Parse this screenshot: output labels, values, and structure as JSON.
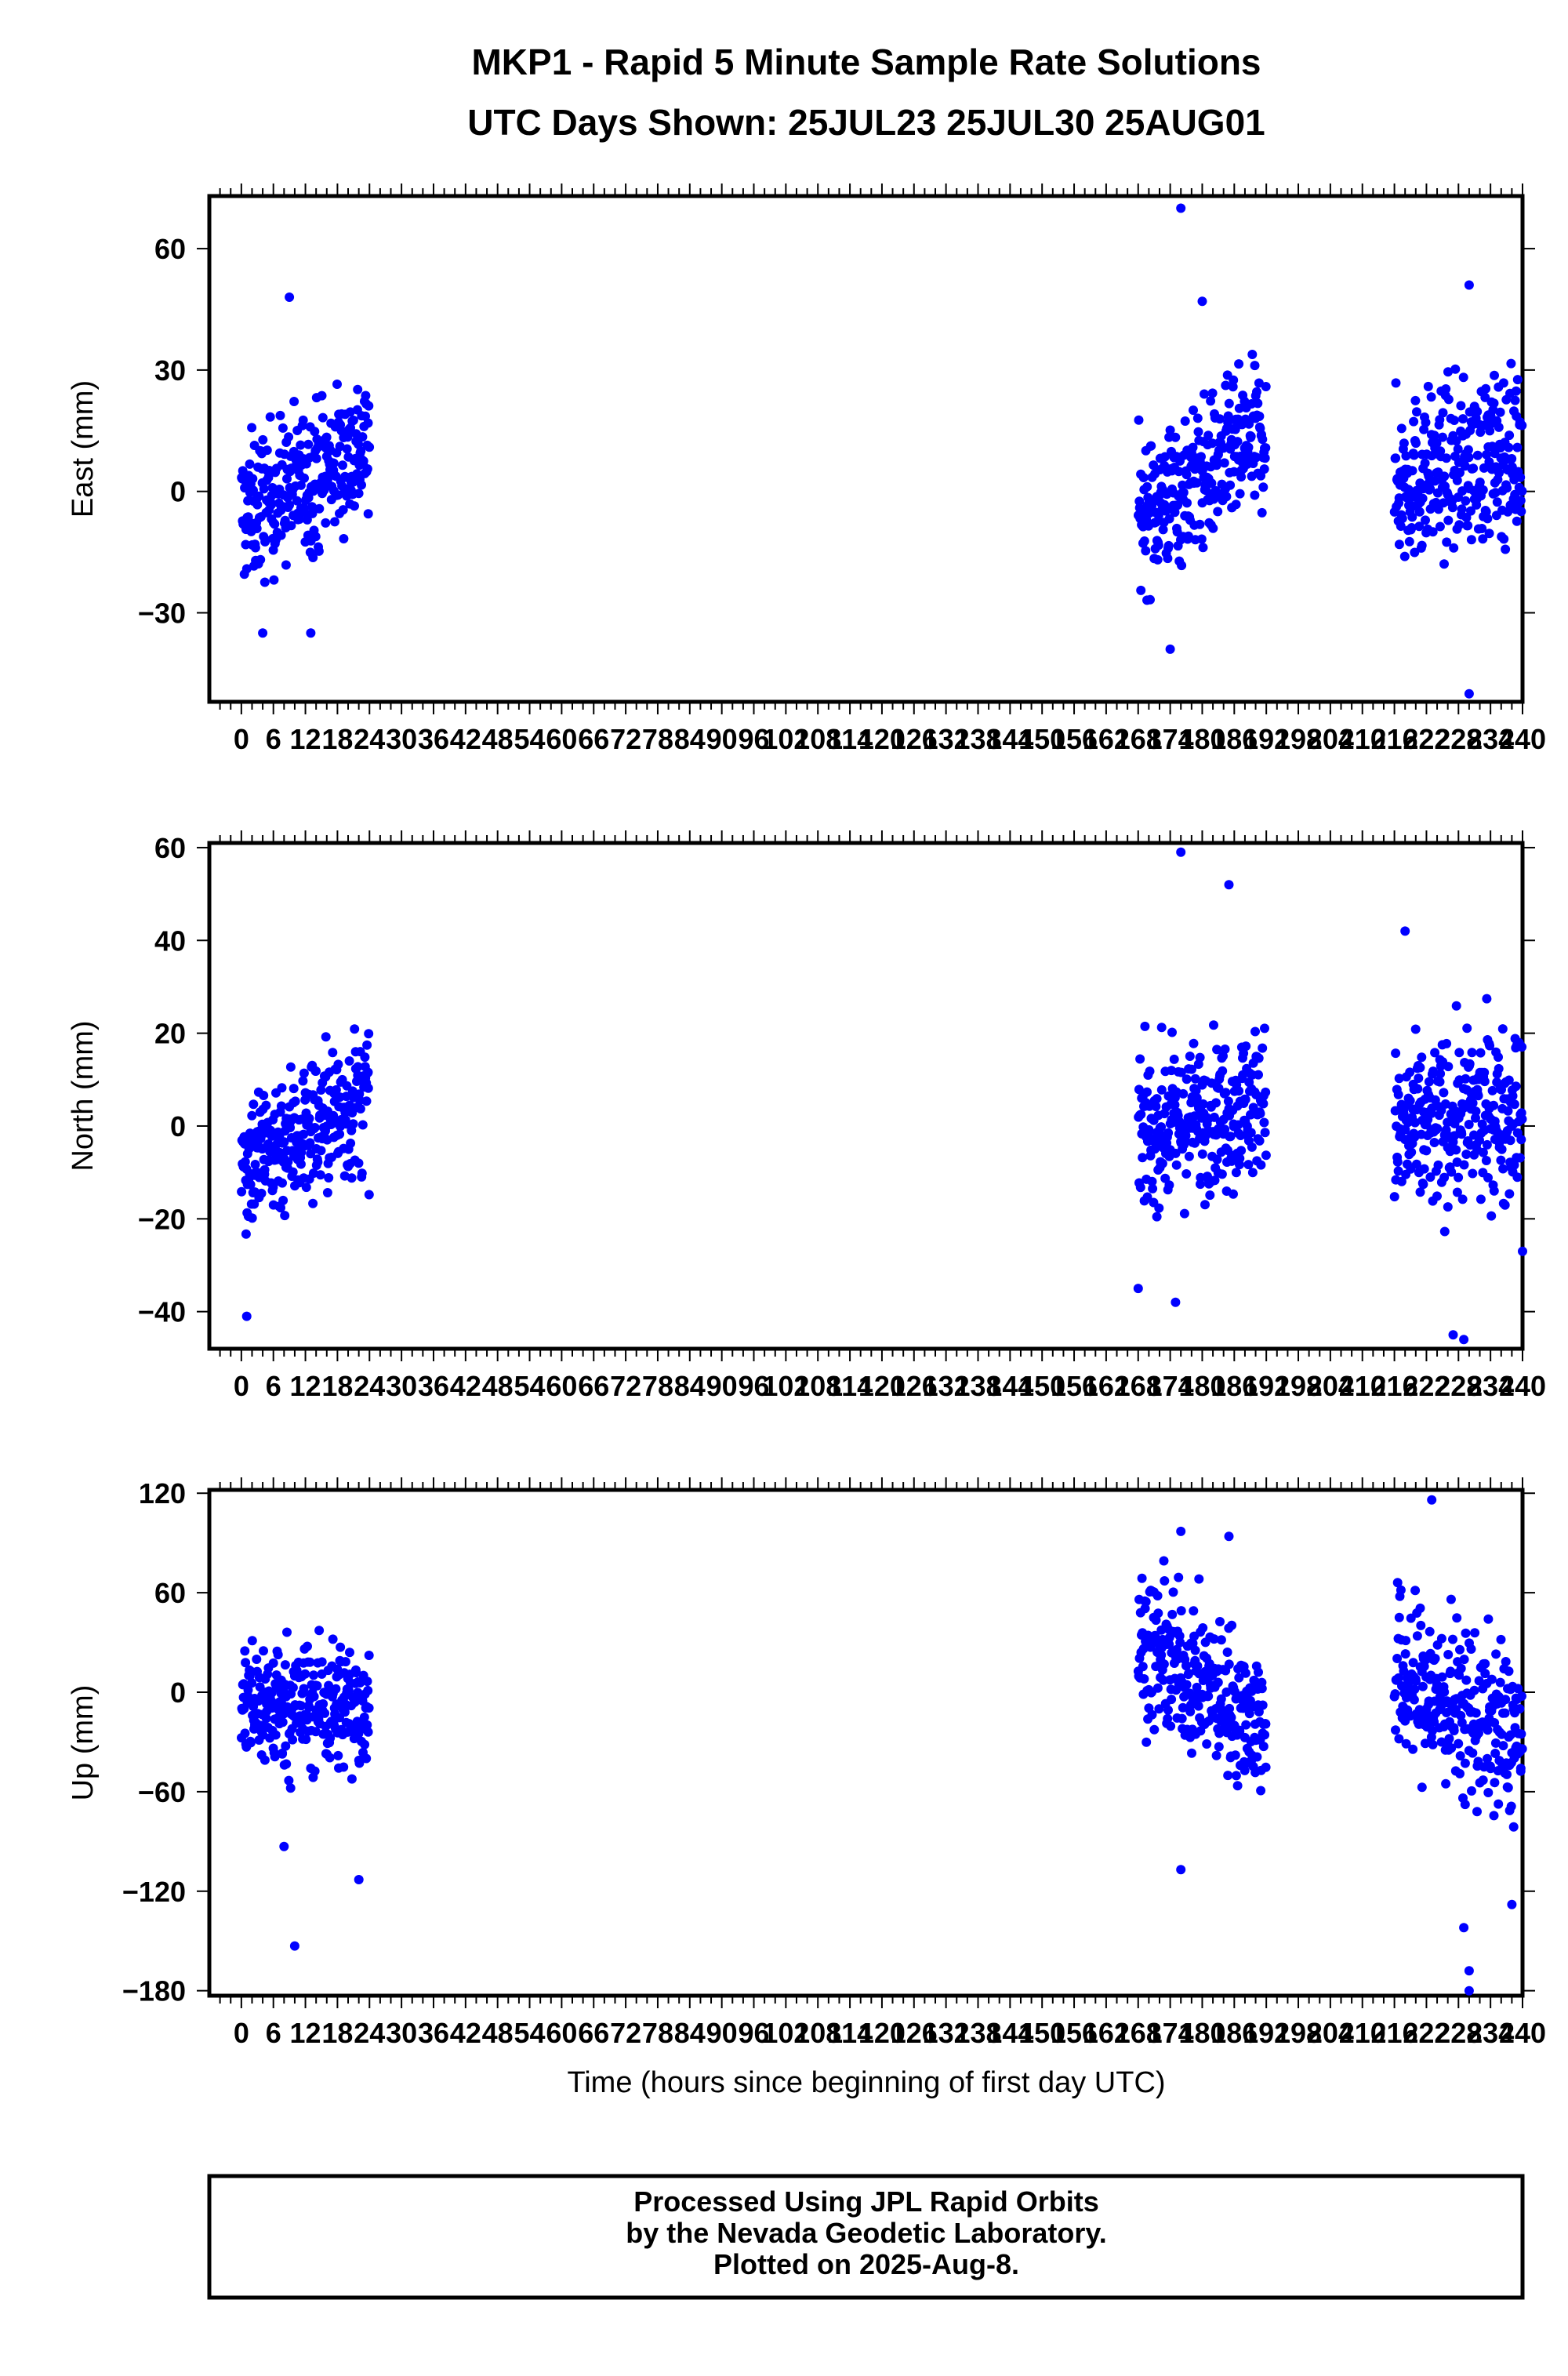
{
  "title_line1": "MKP1 - Rapid 5 Minute Sample Rate Solutions",
  "title_line2": "UTC Days Shown:  25JUL23 25JUL30 25AUG01",
  "xlabel": "Time (hours since beginning of first day UTC)",
  "footer": {
    "line1": "Processed Using JPL Rapid Orbits",
    "line2": "by the Nevada Geodetic Laboratory.",
    "line3": "Plotted on 2025-Aug-8."
  },
  "colors": {
    "points": "#0000ff",
    "axes": "#000000"
  },
  "chart_data": [
    {
      "type": "scatter",
      "ylabel": "East (mm)",
      "xlim": [
        -6,
        240
      ],
      "ylim": [
        -52,
        73
      ],
      "yticks": [
        -30,
        0,
        30,
        60
      ],
      "x_tick_labels": [
        "0",
        "6",
        "12",
        "18",
        "24",
        "30",
        "36",
        "42",
        "48",
        "54",
        "60",
        "66",
        "72",
        "78",
        "84",
        "90",
        "96",
        "102",
        "108",
        "114",
        "120",
        "126",
        "132",
        "138",
        "144",
        "150",
        "156",
        "162",
        "168",
        "174",
        "180",
        "186",
        "192",
        "198",
        "204",
        "210",
        "216",
        "222",
        "228",
        "234",
        "240"
      ],
      "segments": [
        {
          "x_start": 0,
          "x_end": 24,
          "center_start": -6,
          "center_end": 12,
          "scatter": 9,
          "points_shown_per_hour": 12
        },
        {
          "x_start": 168,
          "x_end": 192,
          "center_start": -6,
          "center_end": 14,
          "scatter": 9,
          "points_shown_per_hour": 12
        },
        {
          "x_start": 216,
          "x_end": 240,
          "center_start": 2,
          "center_end": 10,
          "scatter": 10,
          "points_shown_per_hour": 12
        }
      ],
      "outliers": [
        {
          "x": 176,
          "y": 70
        },
        {
          "x": 180,
          "y": 47
        },
        {
          "x": 9,
          "y": 48
        },
        {
          "x": 230,
          "y": 51
        },
        {
          "x": 230,
          "y": -50
        },
        {
          "x": 174,
          "y": -39
        },
        {
          "x": 13,
          "y": -35
        },
        {
          "x": 4,
          "y": -35
        }
      ]
    },
    {
      "type": "scatter",
      "ylabel": "North (mm)",
      "xlim": [
        -6,
        240
      ],
      "ylim": [
        -48,
        61
      ],
      "yticks": [
        -40,
        -20,
        0,
        20,
        40,
        60
      ],
      "x_tick_labels": [
        "0",
        "6",
        "12",
        "18",
        "24",
        "30",
        "36",
        "42",
        "48",
        "54",
        "60",
        "66",
        "72",
        "78",
        "84",
        "90",
        "96",
        "102",
        "108",
        "114",
        "120",
        "126",
        "132",
        "138",
        "144",
        "150",
        "156",
        "162",
        "168",
        "174",
        "180",
        "186",
        "192",
        "198",
        "204",
        "210",
        "216",
        "222",
        "228",
        "234",
        "240"
      ],
      "segments": [
        {
          "x_start": 0,
          "x_end": 24,
          "center_start": -8,
          "center_end": 6,
          "scatter": 8,
          "points_shown_per_hour": 12
        },
        {
          "x_start": 168,
          "x_end": 192,
          "center_start": -2,
          "center_end": 6,
          "scatter": 8,
          "points_shown_per_hour": 12
        },
        {
          "x_start": 216,
          "x_end": 240,
          "center_start": -2,
          "center_end": 4,
          "scatter": 9,
          "points_shown_per_hour": 12
        }
      ],
      "outliers": [
        {
          "x": 176,
          "y": 59
        },
        {
          "x": 185,
          "y": 52
        },
        {
          "x": 218,
          "y": 42
        },
        {
          "x": 1,
          "y": -41
        },
        {
          "x": 227,
          "y": -45
        },
        {
          "x": 229,
          "y": -46
        },
        {
          "x": 175,
          "y": -38
        },
        {
          "x": 168,
          "y": -35
        },
        {
          "x": 240,
          "y": -27
        }
      ]
    },
    {
      "type": "scatter",
      "ylabel": "Up (mm)",
      "xlim": [
        -6,
        240
      ],
      "ylim": [
        -183,
        122
      ],
      "yticks": [
        -180,
        -120,
        -60,
        0,
        60,
        120
      ],
      "x_tick_labels": [
        "0",
        "6",
        "12",
        "18",
        "24",
        "30",
        "36",
        "42",
        "48",
        "54",
        "60",
        "66",
        "72",
        "78",
        "84",
        "90",
        "96",
        "102",
        "108",
        "114",
        "120",
        "126",
        "132",
        "138",
        "144",
        "150",
        "156",
        "162",
        "168",
        "174",
        "180",
        "186",
        "192",
        "198",
        "204",
        "210",
        "216",
        "222",
        "228",
        "234",
        "240"
      ],
      "segments": [
        {
          "x_start": 0,
          "x_end": 24,
          "center_start": -8,
          "center_end": -8,
          "scatter": 20,
          "points_shown_per_hour": 12
        },
        {
          "x_start": 168,
          "x_end": 192,
          "center_start": 30,
          "center_end": -20,
          "scatter": 22,
          "points_shown_per_hour": 12
        },
        {
          "x_start": 216,
          "x_end": 240,
          "center_start": 10,
          "center_end": -30,
          "scatter": 26,
          "points_shown_per_hour": 12
        }
      ],
      "outliers": [
        {
          "x": 10,
          "y": -153
        },
        {
          "x": 22,
          "y": -113
        },
        {
          "x": 8,
          "y": -93
        },
        {
          "x": 223,
          "y": 116
        },
        {
          "x": 176,
          "y": 97
        },
        {
          "x": 185,
          "y": 94
        },
        {
          "x": 230,
          "y": -168
        },
        {
          "x": 230,
          "y": -180
        },
        {
          "x": 229,
          "y": -142
        },
        {
          "x": 176,
          "y": -107
        },
        {
          "x": 238,
          "y": -128
        }
      ]
    }
  ]
}
